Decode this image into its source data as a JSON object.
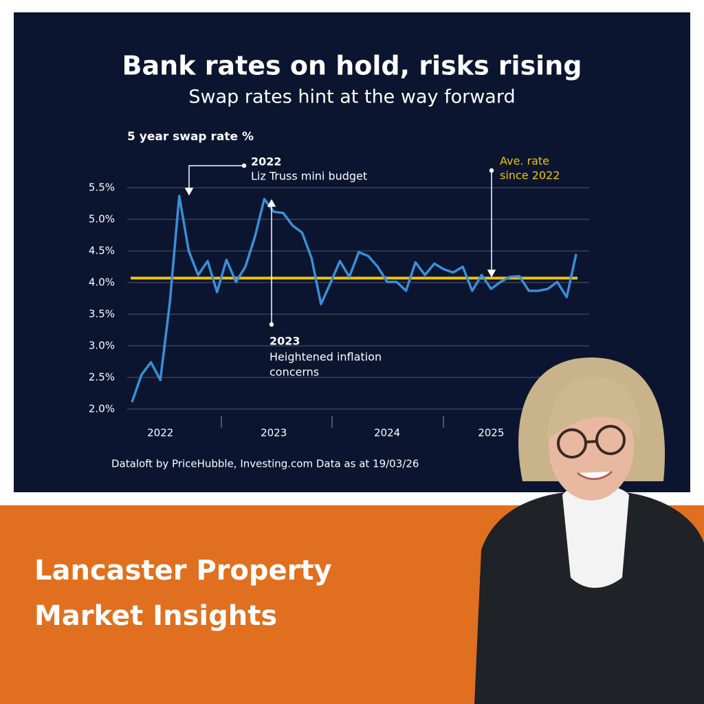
{
  "chart_data": {
    "type": "line",
    "title": "Bank rates on hold, risks rising",
    "subtitle": "Swap rates hint at the way forward",
    "ylabel": "5 year swap rate %",
    "categories": [
      null,
      null,
      null,
      "2022",
      null,
      null,
      null,
      null,
      null,
      null,
      null,
      null,
      null,
      null,
      null,
      "2023",
      null,
      null,
      null,
      null,
      null,
      null,
      null,
      null,
      null,
      null,
      null,
      "2024",
      null,
      null,
      null,
      null,
      null,
      null,
      null,
      null,
      null,
      null,
      "2025",
      null,
      null,
      null,
      null,
      null,
      null,
      null,
      null,
      null
    ],
    "values": [
      2.11,
      2.54,
      2.74,
      2.46,
      3.68,
      5.37,
      4.5,
      4.12,
      4.34,
      3.85,
      4.36,
      4.01,
      4.25,
      4.72,
      5.32,
      5.12,
      5.1,
      4.9,
      4.79,
      4.39,
      3.66,
      3.99,
      4.34,
      4.09,
      4.48,
      4.42,
      4.25,
      4.01,
      4.01,
      3.87,
      4.32,
      4.12,
      4.3,
      4.21,
      4.16,
      4.25,
      3.87,
      4.12,
      3.9,
      4.01,
      4.09,
      4.1,
      3.87,
      3.87,
      3.9,
      4.01,
      3.77,
      4.45
    ],
    "color": "#3a8fd8",
    "average": 4.07,
    "average_color": "#f2c400",
    "ylim": [
      2.0,
      5.5
    ],
    "yticks": [
      {
        "value": 2.0,
        "label": "2.0%"
      },
      {
        "value": 2.5,
        "label": "2.5%"
      },
      {
        "value": 3.0,
        "label": "3.0%"
      },
      {
        "value": 3.5,
        "label": "3.5%"
      },
      {
        "value": 4.0,
        "label": "4.0%"
      },
      {
        "value": 4.5,
        "label": "4.5%"
      },
      {
        "value": 5.0,
        "label": "5.0%"
      },
      {
        "value": 5.5,
        "label": "5.5%"
      }
    ],
    "grid": true,
    "annotations": {
      "truss": [
        "2022",
        "Liz Truss mini budget"
      ],
      "inflation": [
        "2023",
        "Heightened inflation",
        "concerns"
      ],
      "average": [
        "Ave. rate",
        "since 2022"
      ]
    },
    "source": "Dataloft by PriceHubble, Investing.com Data as at 19/03/26"
  },
  "banner": {
    "lines": [
      "Lancaster Property",
      "Market Insights"
    ]
  }
}
